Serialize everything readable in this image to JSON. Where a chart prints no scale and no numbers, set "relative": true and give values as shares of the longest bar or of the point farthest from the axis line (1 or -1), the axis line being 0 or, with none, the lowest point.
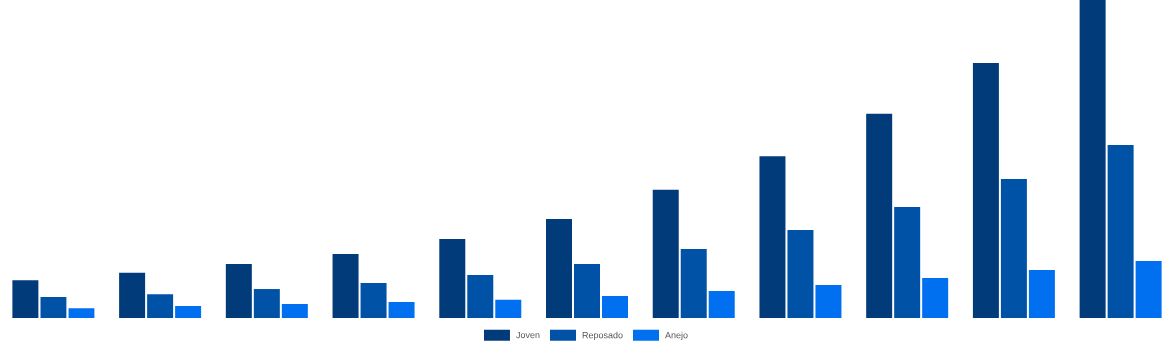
{
  "chart_data": {
    "type": "bar",
    "relative": true,
    "legend": "bottom",
    "categories": [
      null,
      null,
      null,
      null,
      null,
      null,
      null,
      null,
      null,
      null,
      null
    ],
    "series": [
      {
        "name": "Joven",
        "color": "#023b7a",
        "values": [
          0.119,
          0.142,
          0.17,
          0.201,
          0.248,
          0.311,
          0.403,
          0.509,
          0.642,
          0.802,
          1
        ]
      },
      {
        "name": "Reposado",
        "color": "#0052a6",
        "values": [
          0.066,
          0.075,
          0.091,
          0.11,
          0.135,
          0.17,
          0.217,
          0.277,
          0.349,
          0.437,
          0.544
        ]
      },
      {
        "name": "Anejo",
        "color": "#006ff0",
        "values": [
          0.031,
          0.038,
          0.044,
          0.05,
          0.057,
          0.069,
          0.085,
          0.104,
          0.126,
          0.151,
          0.179
        ]
      }
    ]
  }
}
